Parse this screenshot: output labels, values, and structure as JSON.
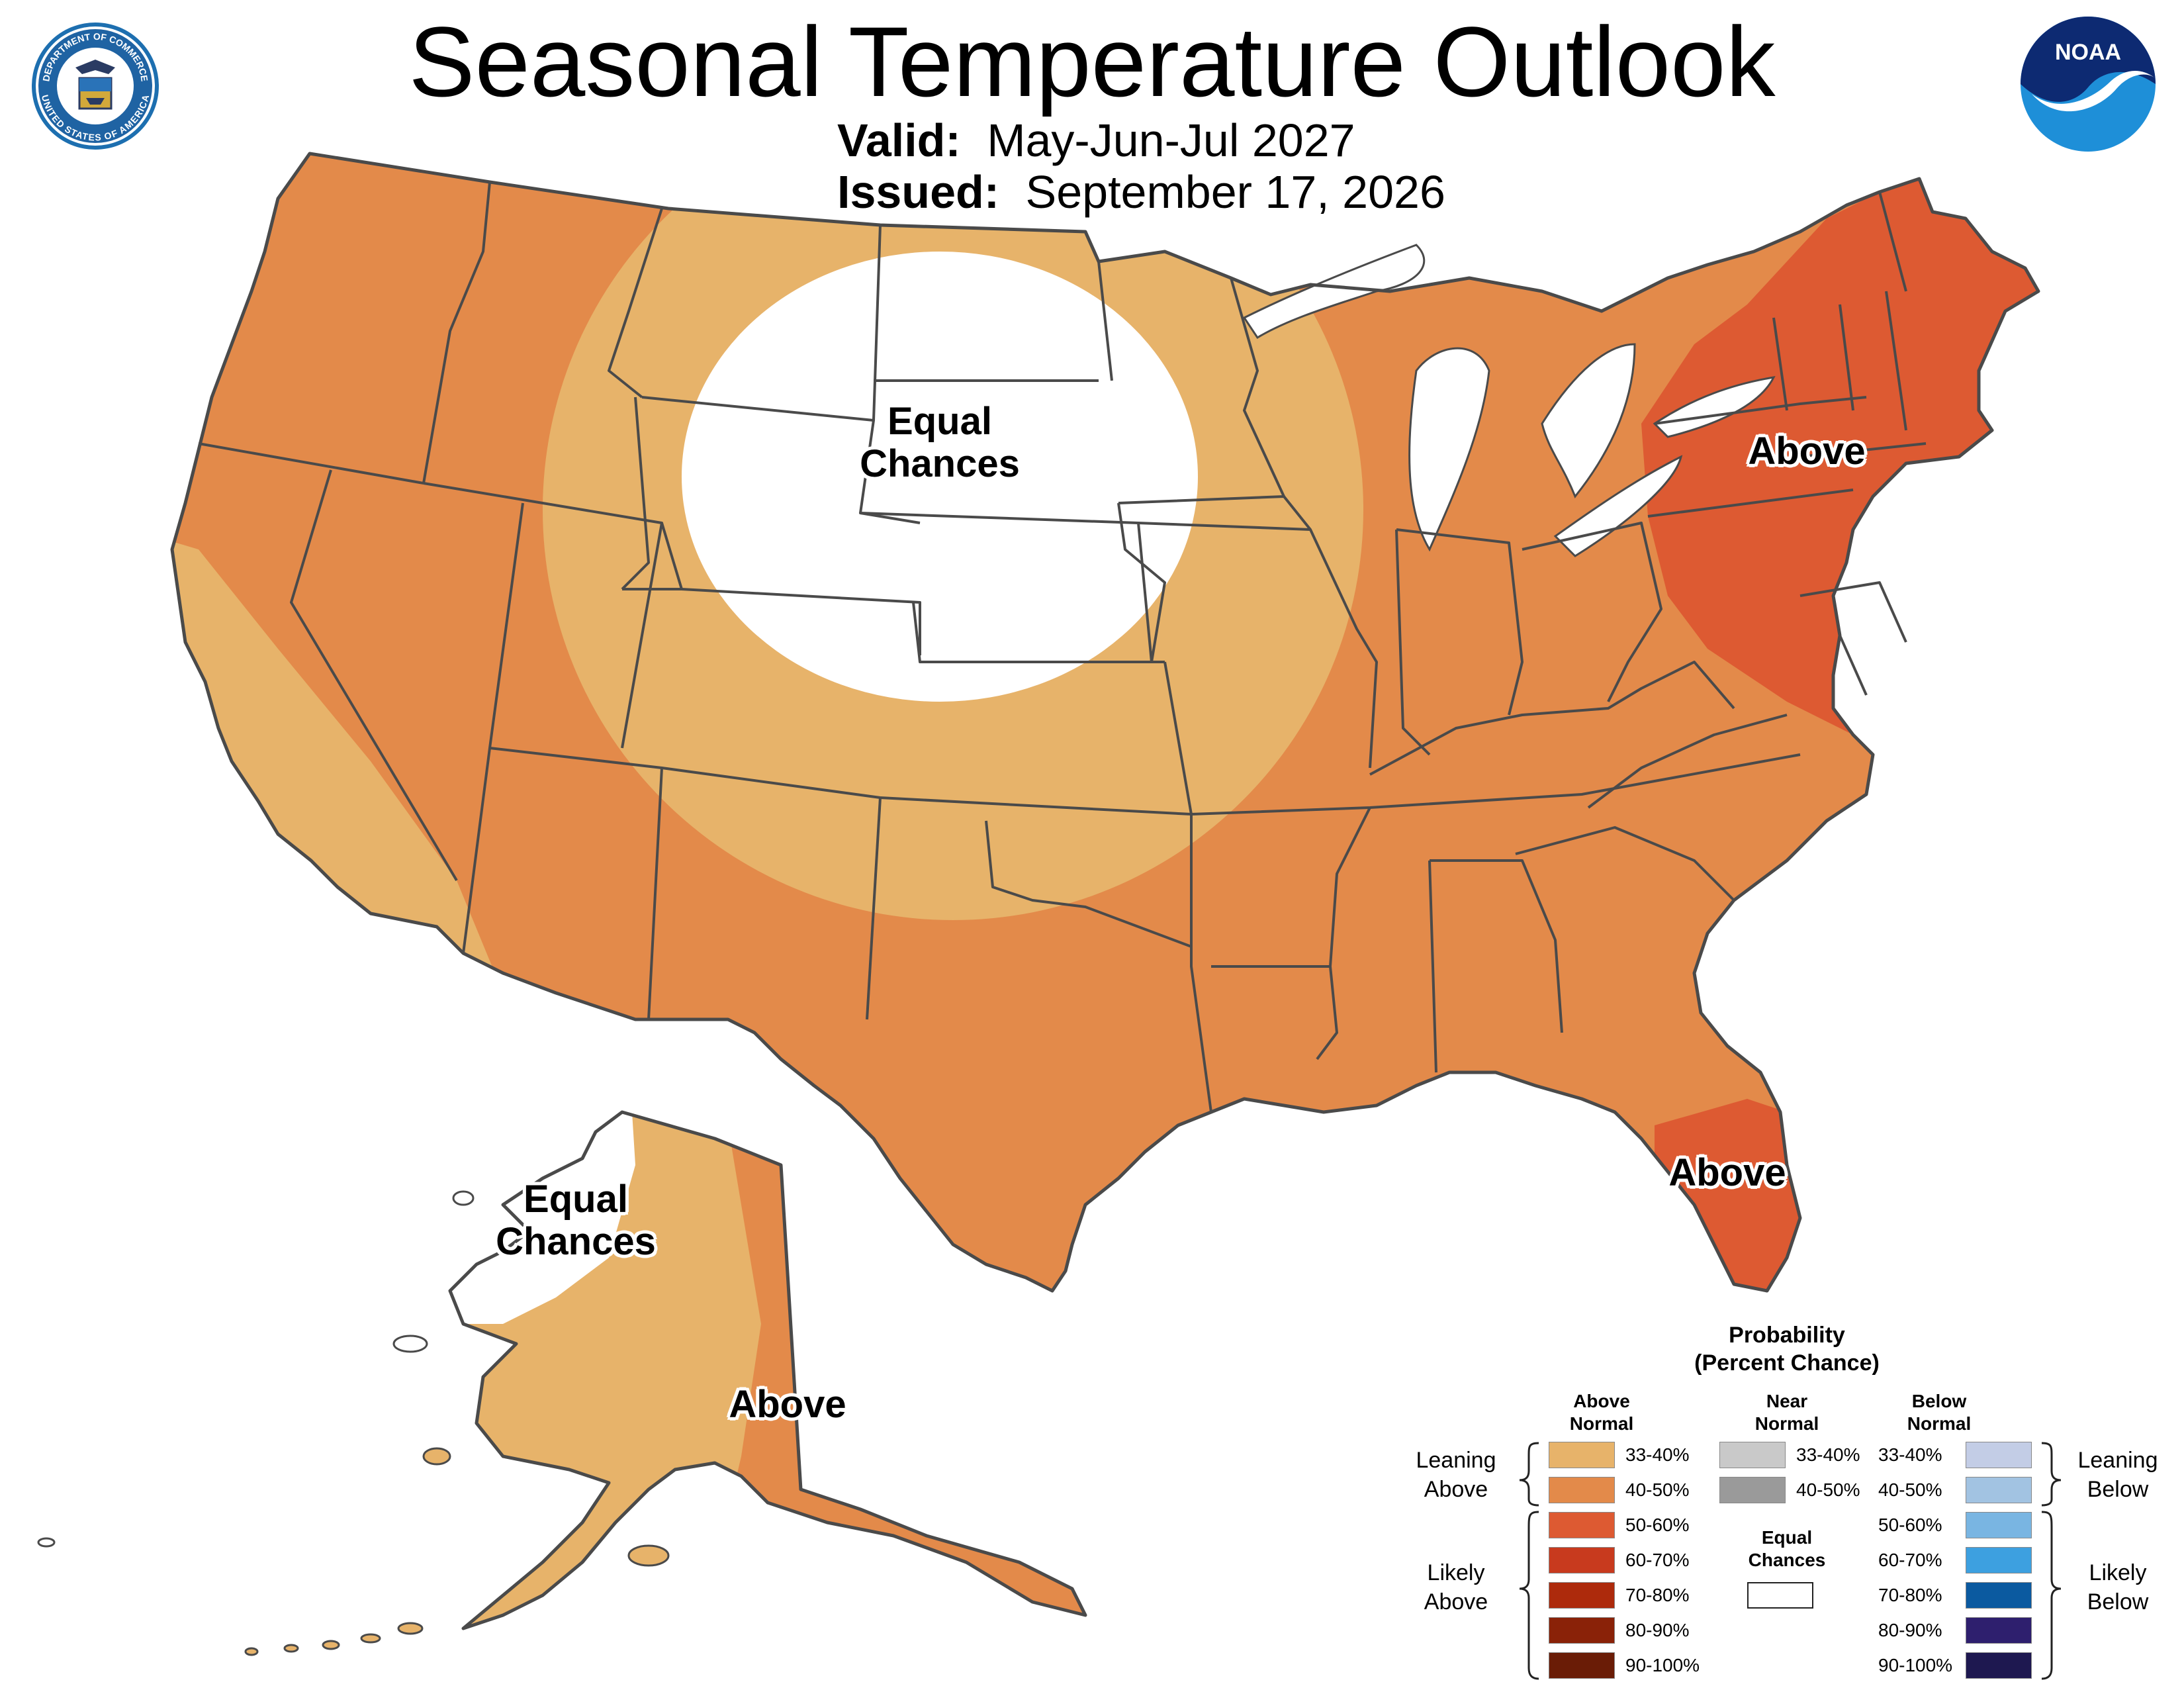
{
  "title": "Seasonal Temperature Outlook",
  "valid_label": "Valid:",
  "valid_value": "May-Jun-Jul 2027",
  "issued_label": "Issued:",
  "issued_value": "September 17, 2026",
  "logos": {
    "left": "Department of Commerce seal",
    "left_ring_top": "DEPARTMENT OF COMMERCE",
    "left_ring_bottom": "UNITED STATES OF AMERICA",
    "right": "NOAA logo",
    "right_text": "NOAA"
  },
  "map_labels": {
    "plains": [
      "Equal",
      "Chances"
    ],
    "northeast": "Above",
    "florida": "Above",
    "alaska_west": [
      "Equal",
      "Chances"
    ],
    "alaska_south": "Above"
  },
  "colors": {
    "leaning_above_33_40": "#e7b36a",
    "leaning_above_40_50": "#e38a4a",
    "likely_above_50_60": "#dd5a32",
    "likely_above_60_70": "#c83a1e",
    "likely_above_70_80": "#ad2a0c",
    "likely_above_80_90": "#8a2208",
    "likely_above_90_100": "#6a1c06",
    "near_33_40": "#c9c9c9",
    "near_40_50": "#9a9a9a",
    "below_33_40": "#c3cde6",
    "below_40_50": "#a2c3e2",
    "below_50_60": "#79b5e2",
    "below_60_70": "#3da0e0",
    "below_70_80": "#0b5aa0",
    "below_80_90": "#2e1f6e",
    "below_90_100": "#1e1850",
    "equal_chances": "#ffffff",
    "boundary": "#4a4a4a"
  },
  "legend": {
    "title": [
      "Probability",
      "(Percent Chance)"
    ],
    "above_header": [
      "Above",
      "Normal"
    ],
    "near_header": [
      "Near",
      "Normal"
    ],
    "below_header": [
      "Below",
      "Normal"
    ],
    "above_ranges": [
      "33-40%",
      "40-50%",
      "50-60%",
      "60-70%",
      "70-80%",
      "80-90%",
      "90-100%"
    ],
    "near_ranges": [
      "33-40%",
      "40-50%"
    ],
    "below_ranges": [
      "33-40%",
      "40-50%",
      "50-60%",
      "60-70%",
      "70-80%",
      "80-90%",
      "90-100%"
    ],
    "equal_chances": [
      "Equal",
      "Chances"
    ],
    "leaning_above": [
      "Leaning",
      "Above"
    ],
    "likely_above": [
      "Likely",
      "Above"
    ],
    "leaning_below": [
      "Leaning",
      "Below"
    ],
    "likely_below": [
      "Likely",
      "Below"
    ]
  }
}
